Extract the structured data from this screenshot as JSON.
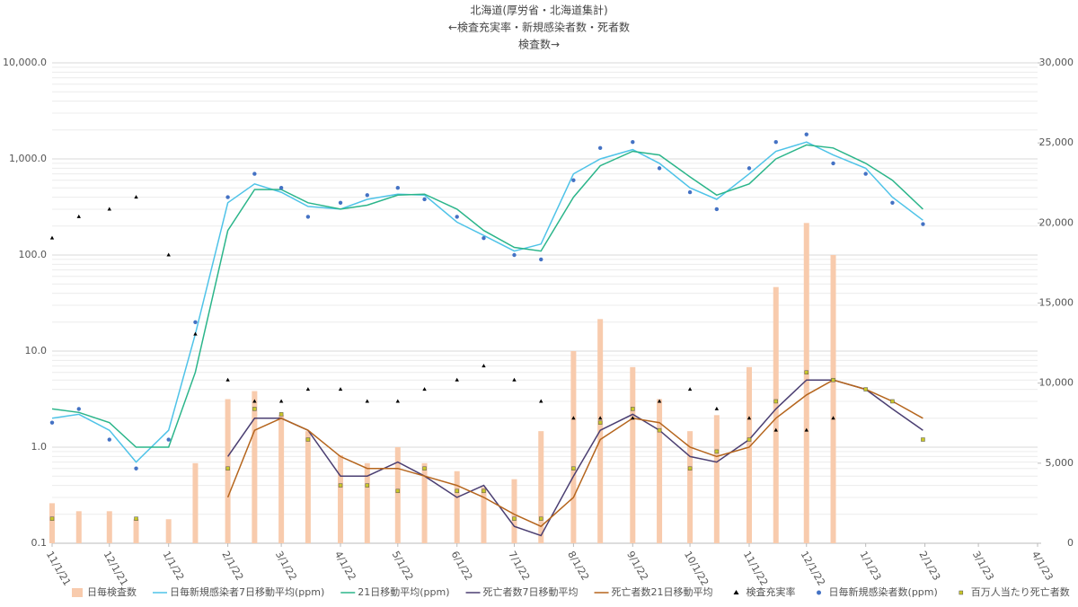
{
  "chart_data": {
    "type": "combo",
    "title": "北海道(厚労省・北海道集計)",
    "subtitle": "←検査充実率・新規感染者数・死者数",
    "subtitle2": "検査数→",
    "x": [
      "11/1/21",
      "11/15/21",
      "12/1/21",
      "12/15/21",
      "1/1/22",
      "1/15/22",
      "2/1/22",
      "2/15/22",
      "3/1/22",
      "3/15/22",
      "4/1/22",
      "4/15/22",
      "5/1/22",
      "5/15/22",
      "6/1/22",
      "6/15/22",
      "7/1/22",
      "7/15/22",
      "8/1/22",
      "8/15/22",
      "9/1/22",
      "9/15/22",
      "10/1/22",
      "10/15/22",
      "11/1/22",
      "11/15/22",
      "12/1/22",
      "12/15/22",
      "1/1/23",
      "1/15/23",
      "1/31/23"
    ],
    "xlim": [
      "11/1/21",
      "4/1/23"
    ],
    "xticks": [
      "11/1/21",
      "12/1/21",
      "1/1/22",
      "2/1/22",
      "3/1/22",
      "4/1/22",
      "5/1/22",
      "6/1/22",
      "7/1/22",
      "8/1/22",
      "9/1/22",
      "10/1/22",
      "11/1/22",
      "12/1/22",
      "1/1/23",
      "2/1/23",
      "3/1/23",
      "4/1/23"
    ],
    "ylim": [
      0.1,
      10000
    ],
    "log_y": true,
    "grid": true,
    "yticks": [
      0.1,
      {
        "value": 1,
        "label": "1.0"
      },
      {
        "value": 10,
        "label": "10.0"
      },
      {
        "value": 100,
        "label": "100.0"
      },
      {
        "value": 1000,
        "label": "1,000.0"
      },
      {
        "value": 10000,
        "label": "10,000.0"
      }
    ],
    "y2lim": [
      0,
      30000
    ],
    "y2ticks": [
      0,
      {
        "value": 5000,
        "label": "5,000"
      },
      {
        "value": 10000,
        "label": "10,000"
      },
      {
        "value": 15000,
        "label": "15,000"
      },
      {
        "value": 20000,
        "label": "20,000"
      },
      {
        "value": 25000,
        "label": "25,000"
      },
      {
        "value": 30000,
        "label": "30,000"
      }
    ],
    "legend": "bottom",
    "series": [
      {
        "name": "日毎検査数",
        "kind": "bar",
        "axis": "y2",
        "color": "#f8cbad",
        "values": [
          2500,
          2000,
          2000,
          1500,
          1500,
          5000,
          9000,
          9500,
          8000,
          7000,
          5500,
          5000,
          6000,
          5000,
          4500,
          3500,
          4000,
          7000,
          12000,
          14000,
          11000,
          9000,
          7000,
          8000,
          11000,
          16000,
          20000,
          18000,
          null,
          null,
          null
        ]
      },
      {
        "name": "日毎新規感染者7日移動平均(ppm)",
        "kind": "line",
        "color": "#4fc3e8",
        "values": [
          2,
          2.2,
          1.5,
          0.7,
          1.5,
          15,
          350,
          550,
          450,
          320,
          300,
          380,
          430,
          420,
          220,
          160,
          110,
          130,
          700,
          1000,
          1250,
          900,
          500,
          380,
          700,
          1200,
          1500,
          1100,
          800,
          400,
          230
        ]
      },
      {
        "name": "21日移動平均(ppm)",
        "kind": "line",
        "color": "#2bb58a",
        "values": [
          2.5,
          2.3,
          1.8,
          1.0,
          1.0,
          6,
          180,
          480,
          480,
          350,
          300,
          330,
          420,
          430,
          300,
          180,
          120,
          110,
          400,
          850,
          1200,
          1100,
          650,
          420,
          550,
          1000,
          1400,
          1300,
          900,
          600,
          300
        ]
      },
      {
        "name": "死亡者数7日移動平均",
        "kind": "line",
        "color": "#4b3f72",
        "values": [
          null,
          null,
          null,
          null,
          null,
          null,
          0.8,
          2,
          2,
          1.5,
          0.5,
          0.5,
          0.7,
          0.5,
          0.3,
          0.4,
          0.15,
          0.12,
          0.5,
          1.5,
          2.2,
          1.5,
          0.8,
          0.7,
          1.2,
          2.5,
          5,
          5,
          4,
          2.5,
          1.5
        ]
      },
      {
        "name": "死亡者数21日移動平均",
        "kind": "line",
        "color": "#b5651d",
        "values": [
          null,
          null,
          null,
          null,
          null,
          null,
          0.3,
          1.5,
          2,
          1.5,
          0.8,
          0.6,
          0.6,
          0.5,
          0.4,
          0.3,
          0.2,
          0.15,
          0.3,
          1.2,
          2,
          1.8,
          1.0,
          0.8,
          1.0,
          2.0,
          3.5,
          5,
          4,
          3,
          2
        ]
      },
      {
        "name": "検査充実率",
        "kind": "triangle",
        "color": "#000000",
        "values": [
          150,
          250,
          300,
          400,
          100,
          15,
          5,
          3,
          3,
          4,
          4,
          3,
          3,
          4,
          5,
          7,
          5,
          3,
          2,
          2,
          2,
          3,
          4,
          2.5,
          2,
          1.5,
          1.5,
          2,
          null,
          null,
          null
        ]
      },
      {
        "name": "日毎新規感染者数(ppm)",
        "kind": "dot",
        "color": "#4472c4",
        "values": [
          1.8,
          2.5,
          1.2,
          0.6,
          1.2,
          20,
          400,
          700,
          500,
          250,
          350,
          420,
          500,
          380,
          250,
          150,
          100,
          90,
          600,
          1300,
          1500,
          800,
          450,
          300,
          800,
          1500,
          1800,
          900,
          700,
          350,
          210
        ]
      },
      {
        "name": "百万人当たり死亡者数",
        "kind": "square",
        "color": "#c9c62a",
        "values": [
          0.18,
          null,
          null,
          0.18,
          null,
          null,
          0.6,
          2.5,
          2.2,
          1.2,
          0.4,
          0.4,
          0.35,
          0.6,
          0.35,
          0.35,
          0.18,
          0.18,
          0.6,
          1.8,
          2.5,
          1.5,
          0.6,
          0.9,
          1.2,
          3,
          6,
          5,
          4,
          3,
          1.2
        ]
      }
    ]
  }
}
